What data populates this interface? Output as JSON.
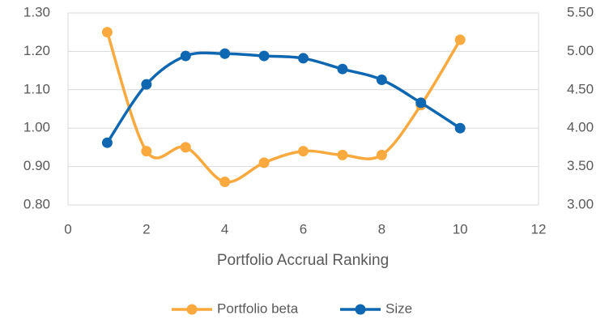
{
  "chart_data": {
    "type": "line",
    "x_label": "Portfolio Accrual Ranking",
    "x": [
      1,
      2,
      3,
      4,
      5,
      6,
      7,
      8,
      9,
      10
    ],
    "series": [
      {
        "name": "Portfolio beta",
        "color": "#f9a93d",
        "values": [
          1.25,
          0.94,
          0.95,
          0.86,
          0.91,
          0.94,
          0.93,
          0.93,
          1.06,
          1.23
        ]
      },
      {
        "name": "Size",
        "color": "#0f67b1",
        "axis": "y2",
        "values": [
          3.81,
          4.57,
          4.94,
          4.97,
          4.94,
          4.91,
          4.77,
          4.63,
          4.33,
          4.0
        ]
      }
    ],
    "xlim": [
      0,
      12
    ],
    "xticks": [
      0,
      2,
      4,
      6,
      8,
      10,
      12
    ],
    "ylim": [
      0.8,
      1.3
    ],
    "yticks": [
      {
        "value": 0.8,
        "label": "0.80"
      },
      {
        "value": 0.9,
        "label": "0.90"
      },
      {
        "value": 1.0,
        "label": "1.00"
      },
      {
        "value": 1.1,
        "label": "1.10"
      },
      {
        "value": 1.2,
        "label": "1.20"
      },
      {
        "value": 1.3,
        "label": "1.30"
      }
    ],
    "y2lim": [
      3.0,
      5.5
    ],
    "y2ticks": [
      {
        "value": 3.0,
        "label": "3.00"
      },
      {
        "value": 3.5,
        "label": "3.50"
      },
      {
        "value": 4.0,
        "label": "4.00"
      },
      {
        "value": 4.5,
        "label": "4.50"
      },
      {
        "value": 5.0,
        "label": "5.00"
      },
      {
        "value": 5.5,
        "label": "5.50"
      }
    ],
    "grid": true,
    "smooth": true,
    "legend": "bottom"
  }
}
